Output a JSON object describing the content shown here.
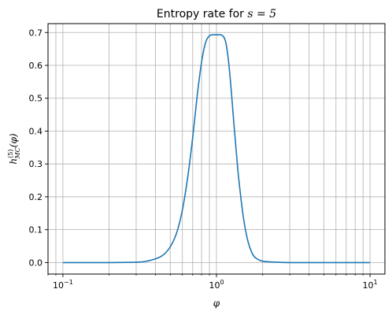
{
  "chart_data": {
    "type": "line",
    "title_prefix": "Entropy rate for ",
    "title_math": "s = 5",
    "xlabel": "φ",
    "ylabel": "h",
    "ylabel_sup": "(5)",
    "ylabel_sub": "MC",
    "ylabel_arg": "(φ)",
    "xscale": "log",
    "xlim": [
      0.08,
      12.5
    ],
    "ylim": [
      -0.035,
      0.727
    ],
    "x_ticks_major": [
      {
        "value": 0.1,
        "base": "10",
        "exp": "−1"
      },
      {
        "value": 1,
        "base": "10",
        "exp": "0"
      },
      {
        "value": 10,
        "base": "10",
        "exp": "1"
      }
    ],
    "y_ticks": [
      {
        "value": 0.0,
        "label": "0.0"
      },
      {
        "value": 0.1,
        "label": "0.1"
      },
      {
        "value": 0.2,
        "label": "0.2"
      },
      {
        "value": 0.3,
        "label": "0.3"
      },
      {
        "value": 0.4,
        "label": "0.4"
      },
      {
        "value": 0.5,
        "label": "0.5"
      },
      {
        "value": 0.6,
        "label": "0.6"
      },
      {
        "value": 0.7,
        "label": "0.7"
      }
    ],
    "grid": true,
    "line_color": "#1f77b4",
    "series": [
      {
        "x": [
          0.1,
          0.2,
          0.3,
          0.35,
          0.4,
          0.45,
          0.5,
          0.55,
          0.6,
          0.65,
          0.7,
          0.75,
          0.8,
          0.85,
          0.9,
          0.95,
          1.0,
          1.05,
          1.1,
          1.15,
          1.2,
          1.25,
          1.3,
          1.35,
          1.4,
          1.5,
          1.6,
          1.7,
          1.8,
          2.0,
          2.5,
          3.0,
          5.0,
          10.0
        ],
        "y": [
          0.0,
          0.0,
          0.001,
          0.004,
          0.011,
          0.023,
          0.048,
          0.09,
          0.16,
          0.26,
          0.38,
          0.51,
          0.61,
          0.67,
          0.69,
          0.693,
          0.693,
          0.693,
          0.69,
          0.67,
          0.61,
          0.52,
          0.42,
          0.33,
          0.25,
          0.135,
          0.066,
          0.03,
          0.014,
          0.004,
          0.001,
          0.0,
          0.0,
          0.0
        ]
      }
    ]
  }
}
